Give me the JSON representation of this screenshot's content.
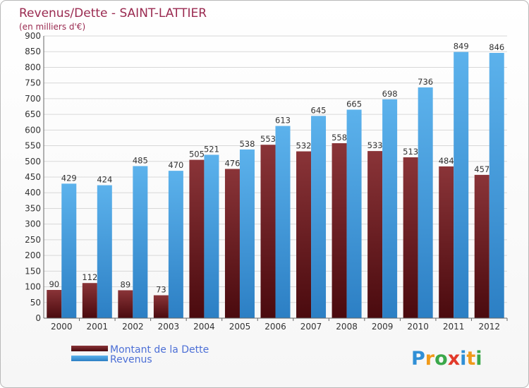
{
  "title": "Revenus/Dette - SAINT-LATTIER",
  "subtitle": "(en milliers d'€)",
  "logo": {
    "letters": [
      {
        "ch": "P",
        "color": "#2f8fd6"
      },
      {
        "ch": "r",
        "color": "#f09a1a"
      },
      {
        "ch": "o",
        "color": "#3aa84a"
      },
      {
        "ch": "x",
        "color": "#e23a2a"
      },
      {
        "ch": "i",
        "color": "#2f8fd6"
      },
      {
        "ch": "t",
        "color": "#f09a1a"
      },
      {
        "ch": "i",
        "color": "#3aa84a"
      }
    ]
  },
  "colors": {
    "dette_top": "#8a3438",
    "dette_bottom": "#4a0a0e",
    "revenus_top": "#5cb2ec",
    "revenus_bottom": "#2c7fc4",
    "grid": "#d8d8d8",
    "axis": "#666666"
  },
  "chart_data": {
    "type": "bar",
    "title": "Revenus/Dette - SAINT-LATTIER",
    "subtitle": "(en milliers d'€)",
    "xlabel": "",
    "ylabel": "",
    "ylim": [
      0,
      900
    ],
    "yticks": [
      0,
      50,
      100,
      150,
      200,
      250,
      300,
      350,
      400,
      450,
      500,
      550,
      600,
      650,
      700,
      750,
      800,
      850,
      900
    ],
    "grid": true,
    "legend_position": "bottom-left",
    "categories": [
      "2000",
      "2001",
      "2002",
      "2003",
      "2004",
      "2005",
      "2006",
      "2007",
      "2008",
      "2009",
      "2010",
      "2011",
      "2012"
    ],
    "series": [
      {
        "name": "Montant de la Dette",
        "values": [
          90,
          112,
          89,
          73,
          505,
          476,
          553,
          532,
          558,
          533,
          513,
          484,
          457
        ]
      },
      {
        "name": "Revenus",
        "values": [
          429,
          424,
          485,
          470,
          521,
          538,
          613,
          645,
          665,
          698,
          736,
          849,
          846
        ]
      }
    ]
  }
}
